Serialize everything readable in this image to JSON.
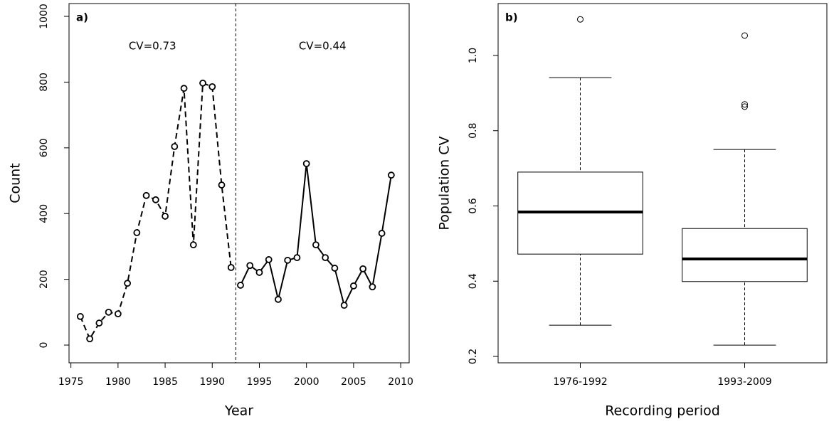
{
  "chart_data": [
    {
      "type": "line",
      "panel_label": "a)",
      "x_label": "Year",
      "y_label": "Count",
      "annotations": [
        "CV=0.73",
        "CV=0.44"
      ],
      "xlim": [
        1974.8,
        2010.9
      ],
      "xticks": [
        1975,
        1980,
        1985,
        1990,
        1995,
        2000,
        2005,
        2010
      ],
      "ylim": [
        -54,
        1039
      ],
      "yticks": [
        0,
        200,
        400,
        600,
        800,
        1000
      ],
      "reference_line_x": 1992.5,
      "series": [
        {
          "color": "#000000",
          "dashed": true,
          "x": [
            1976,
            1977,
            1978,
            1979,
            1980,
            1981,
            1982,
            1983,
            1984,
            1985,
            1986,
            1987,
            1988,
            1989,
            1990,
            1991,
            1992
          ],
          "values": [
            87,
            19,
            67,
            100,
            95,
            188,
            342,
            455,
            442,
            392,
            604,
            781,
            305,
            797,
            786,
            487,
            236
          ]
        },
        {
          "color": "#000000",
          "dashed": false,
          "x": [
            1993,
            1994,
            1995,
            1996,
            1997,
            1998,
            1999,
            2000,
            2001,
            2002,
            2003,
            2004,
            2005,
            2006,
            2007,
            2008,
            2009
          ],
          "values": [
            182,
            242,
            221,
            260,
            139,
            258,
            266,
            552,
            305,
            266,
            234,
            121,
            180,
            232,
            177,
            340,
            517
          ]
        }
      ]
    },
    {
      "type": "box",
      "panel_label": "b)",
      "x_label": "Recording period",
      "y_label": "Population CV",
      "categories": [
        "1976-1992",
        "1993-2009"
      ],
      "ylim": [
        0.183,
        1.138
      ],
      "yticks": [
        0.2,
        0.4,
        0.6,
        0.8,
        {
          "value": 1,
          "label": "1.0"
        }
      ],
      "boxes": [
        {
          "whisker_low": 0.283,
          "q1": 0.472,
          "median": 0.584,
          "q3": 0.69,
          "whisker_high": 0.941,
          "outliers": [
            1.096
          ]
        },
        {
          "whisker_low": 0.23,
          "q1": 0.399,
          "median": 0.459,
          "q3": 0.54,
          "whisker_high": 0.75,
          "outliers": [
            1.053,
            0.87,
            0.864
          ]
        }
      ]
    }
  ]
}
